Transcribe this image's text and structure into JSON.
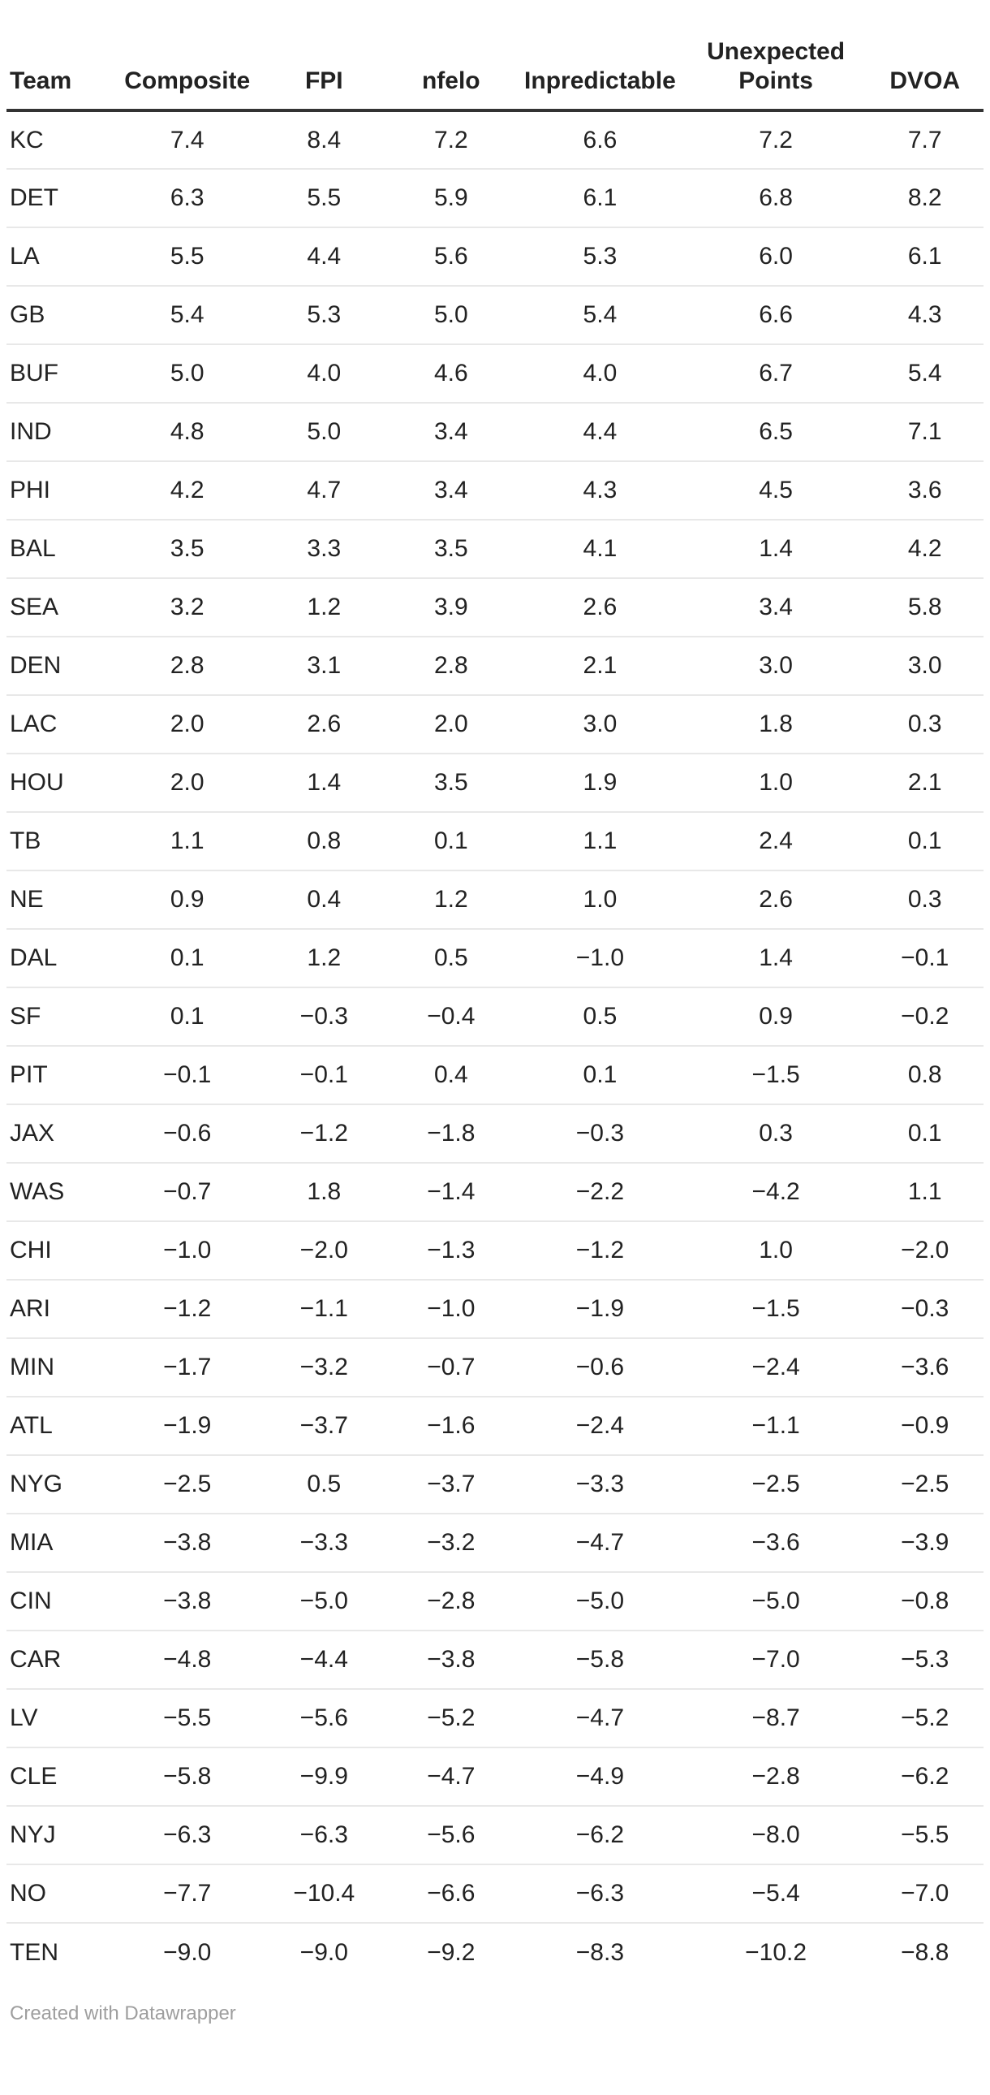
{
  "chart_data": {
    "type": "table",
    "title": "",
    "columns": [
      "Team",
      "Composite",
      "FPI",
      "nfelo",
      "Inpredictable",
      "Unexpected Points",
      "DVOA"
    ],
    "rows": [
      [
        "KC",
        "7.4",
        "8.4",
        "7.2",
        "6.6",
        "7.2",
        "7.7"
      ],
      [
        "DET",
        "6.3",
        "5.5",
        "5.9",
        "6.1",
        "6.8",
        "8.2"
      ],
      [
        "LA",
        "5.5",
        "4.4",
        "5.6",
        "5.3",
        "6.0",
        "6.1"
      ],
      [
        "GB",
        "5.4",
        "5.3",
        "5.0",
        "5.4",
        "6.6",
        "4.3"
      ],
      [
        "BUF",
        "5.0",
        "4.0",
        "4.6",
        "4.0",
        "6.7",
        "5.4"
      ],
      [
        "IND",
        "4.8",
        "5.0",
        "3.4",
        "4.4",
        "6.5",
        "7.1"
      ],
      [
        "PHI",
        "4.2",
        "4.7",
        "3.4",
        "4.3",
        "4.5",
        "3.6"
      ],
      [
        "BAL",
        "3.5",
        "3.3",
        "3.5",
        "4.1",
        "1.4",
        "4.2"
      ],
      [
        "SEA",
        "3.2",
        "1.2",
        "3.9",
        "2.6",
        "3.4",
        "5.8"
      ],
      [
        "DEN",
        "2.8",
        "3.1",
        "2.8",
        "2.1",
        "3.0",
        "3.0"
      ],
      [
        "LAC",
        "2.0",
        "2.6",
        "2.0",
        "3.0",
        "1.8",
        "0.3"
      ],
      [
        "HOU",
        "2.0",
        "1.4",
        "3.5",
        "1.9",
        "1.0",
        "2.1"
      ],
      [
        "TB",
        "1.1",
        "0.8",
        "0.1",
        "1.1",
        "2.4",
        "0.1"
      ],
      [
        "NE",
        "0.9",
        "0.4",
        "1.2",
        "1.0",
        "2.6",
        "0.3"
      ],
      [
        "DAL",
        "0.1",
        "1.2",
        "0.5",
        "−1.0",
        "1.4",
        "−0.1"
      ],
      [
        "SF",
        "0.1",
        "−0.3",
        "−0.4",
        "0.5",
        "0.9",
        "−0.2"
      ],
      [
        "PIT",
        "−0.1",
        "−0.1",
        "0.4",
        "0.1",
        "−1.5",
        "0.8"
      ],
      [
        "JAX",
        "−0.6",
        "−1.2",
        "−1.8",
        "−0.3",
        "0.3",
        "0.1"
      ],
      [
        "WAS",
        "−0.7",
        "1.8",
        "−1.4",
        "−2.2",
        "−4.2",
        "1.1"
      ],
      [
        "CHI",
        "−1.0",
        "−2.0",
        "−1.3",
        "−1.2",
        "1.0",
        "−2.0"
      ],
      [
        "ARI",
        "−1.2",
        "−1.1",
        "−1.0",
        "−1.9",
        "−1.5",
        "−0.3"
      ],
      [
        "MIN",
        "−1.7",
        "−3.2",
        "−0.7",
        "−0.6",
        "−2.4",
        "−3.6"
      ],
      [
        "ATL",
        "−1.9",
        "−3.7",
        "−1.6",
        "−2.4",
        "−1.1",
        "−0.9"
      ],
      [
        "NYG",
        "−2.5",
        "0.5",
        "−3.7",
        "−3.3",
        "−2.5",
        "−2.5"
      ],
      [
        "MIA",
        "−3.8",
        "−3.3",
        "−3.2",
        "−4.7",
        "−3.6",
        "−3.9"
      ],
      [
        "CIN",
        "−3.8",
        "−5.0",
        "−2.8",
        "−5.0",
        "−5.0",
        "−0.8"
      ],
      [
        "CAR",
        "−4.8",
        "−4.4",
        "−3.8",
        "−5.8",
        "−7.0",
        "−5.3"
      ],
      [
        "LV",
        "−5.5",
        "−5.6",
        "−5.2",
        "−4.7",
        "−8.7",
        "−5.2"
      ],
      [
        "CLE",
        "−5.8",
        "−9.9",
        "−4.7",
        "−4.9",
        "−2.8",
        "−6.2"
      ],
      [
        "NYJ",
        "−6.3",
        "−6.3",
        "−5.6",
        "−6.2",
        "−8.0",
        "−5.5"
      ],
      [
        "NO",
        "−7.7",
        "−10.4",
        "−6.6",
        "−6.3",
        "−5.4",
        "−7.0"
      ],
      [
        "TEN",
        "−9.0",
        "−9.0",
        "−9.2",
        "−8.3",
        "−10.2",
        "−8.8"
      ]
    ],
    "layout": {
      "grid": "horizontal-row-separators",
      "numeric_alignment": "center",
      "team_alignment": "left"
    }
  },
  "footer": {
    "credit": "Created with Datawrapper"
  },
  "style": {
    "text_color": "#222222",
    "header_rule_color": "#333333",
    "separator_color": "#e8e8e8",
    "footer_color": "#9e9e9e",
    "background_color": "#ffffff"
  }
}
